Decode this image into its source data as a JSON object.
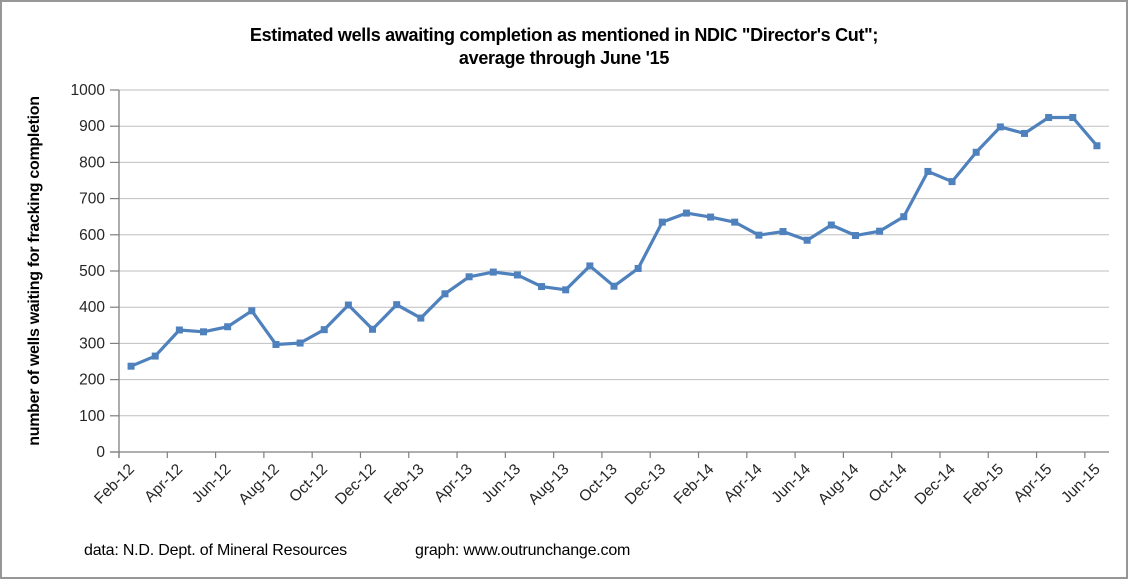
{
  "chart_data": {
    "type": "line",
    "title": "Estimated wells awaiting completion as mentioned in NDIC \"Director's Cut\"; average through June '15",
    "title_line1": "Estimated wells awaiting completion as mentioned in NDIC \"Director's Cut\";",
    "title_line2": "average through June '15",
    "ylabel": "number of wells waiting for fracking completion",
    "xlabel": "",
    "ylim": [
      0,
      1000
    ],
    "y_tick_step": 100,
    "y_tick_labels": [
      "0",
      "100",
      "200",
      "300",
      "400",
      "500",
      "600",
      "700",
      "800",
      "900",
      "1000"
    ],
    "categories": [
      "Feb-12",
      "Mar-12",
      "Apr-12",
      "May-12",
      "Jun-12",
      "Jul-12",
      "Aug-12",
      "Sep-12",
      "Oct-12",
      "Nov-12",
      "Dec-12",
      "Jan-13",
      "Feb-13",
      "Mar-13",
      "Apr-13",
      "May-13",
      "Jun-13",
      "Jul-13",
      "Aug-13",
      "Sep-13",
      "Oct-13",
      "Nov-13",
      "Dec-13",
      "Jan-14",
      "Feb-14",
      "Mar-14",
      "Apr-14",
      "May-14",
      "Jun-14",
      "Jul-14",
      "Aug-14",
      "Sep-14",
      "Oct-14",
      "Nov-14",
      "Dec-14",
      "Jan-15",
      "Feb-15",
      "Mar-15",
      "Apr-15",
      "May-15",
      "Jun-15"
    ],
    "values": [
      237,
      265,
      337,
      332,
      346,
      390,
      297,
      301,
      338,
      406,
      339,
      407,
      370,
      437,
      484,
      497,
      489,
      457,
      448,
      514,
      458,
      507,
      635,
      660,
      649,
      635,
      599,
      609,
      585,
      627,
      598,
      610,
      650,
      775,
      747,
      828,
      898,
      880,
      924,
      924,
      846
    ],
    "x_tick_interval": 2,
    "x_tick_labels": [
      "Feb-12",
      "Apr-12",
      "Jun-12",
      "Aug-12",
      "Oct-12",
      "Dec-12",
      "Feb-13",
      "Apr-13",
      "Jun-13",
      "Aug-13",
      "Oct-13",
      "Dec-13",
      "Feb-14",
      "Apr-14",
      "Jun-14",
      "Aug-14",
      "Oct-14",
      "Dec-14",
      "Feb-15",
      "Apr-15",
      "Jun-15"
    ],
    "legend": "none",
    "gridlines": "horizontal",
    "marker": "square",
    "line_color": "#4F81BD",
    "gridline_color": "#BFBFBF",
    "axis_color": "#7F7F7F",
    "tick_label_color": "#262626"
  },
  "caption": {
    "data_source": "data: N.D. Dept. of Mineral Resources",
    "graph_credit": "graph:  www.outrunchange.com"
  }
}
